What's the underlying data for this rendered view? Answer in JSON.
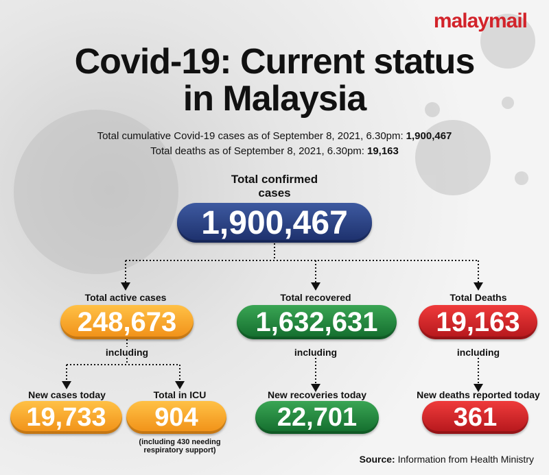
{
  "brand": "malaymail",
  "header": {
    "title_lines": [
      "Covid-19: Current status",
      "in Malaysia"
    ],
    "facts": [
      {
        "text": "Total cumulative Covid-19 cases as of September 8, 2021, 6.30pm:",
        "value": "1,900,467"
      },
      {
        "text": "Total deaths as of September 8, 2021, 6.30pm:",
        "value": "19,163"
      }
    ]
  },
  "total": {
    "label": "Total confirmed cases",
    "value": "1,900,467"
  },
  "groups": [
    {
      "label": "Total active cases",
      "value": "248,673",
      "including": "including"
    },
    {
      "label": "Total recovered",
      "value": "1,632,631",
      "including": "including"
    },
    {
      "label": "Total Deaths",
      "value": "19,163",
      "including": "including"
    }
  ],
  "details": [
    {
      "label": "New cases today",
      "value": "19,733"
    },
    {
      "label": "Total in ICU",
      "value": "904",
      "note": "(including 430 needing respiratory support)"
    },
    {
      "label": "New recoveries today",
      "value": "22,701"
    },
    {
      "label": "New deaths reported today",
      "value": "361"
    }
  ],
  "source": {
    "label": "Source:",
    "text": "Information from Health Ministry"
  }
}
